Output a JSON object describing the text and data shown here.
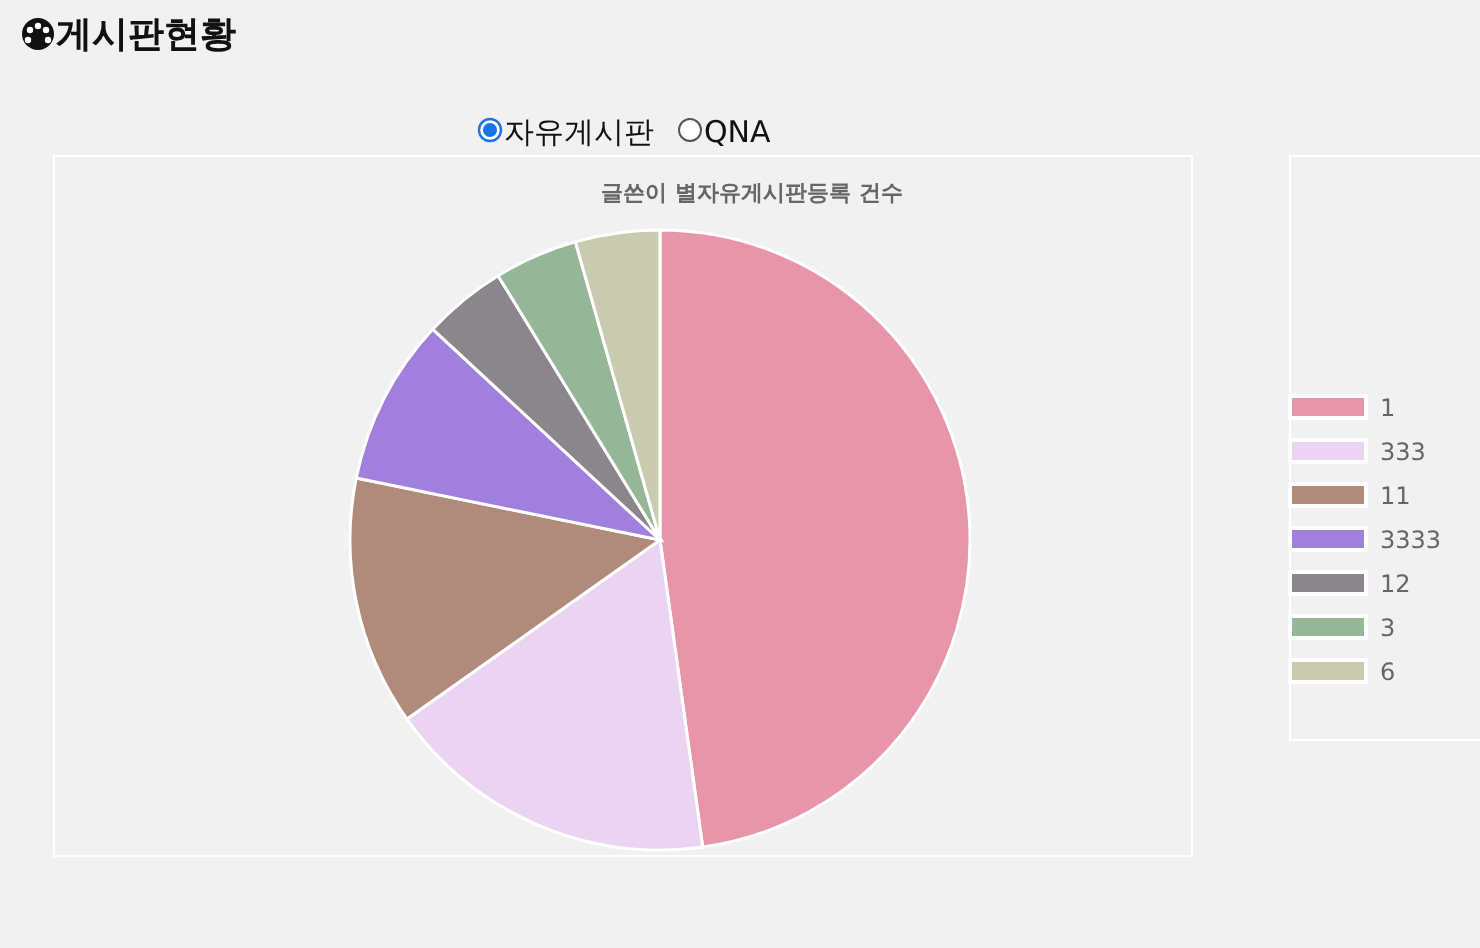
{
  "chart_data": {
    "type": "pie",
    "title": "게시판현황",
    "subtitle": "글쓴이 별자유게시판등록 건수",
    "annotations": [
      "자유게시판",
      "QNA"
    ],
    "categories": [
      "1",
      "333",
      "11",
      "3333",
      "12",
      "3",
      "6"
    ],
    "values": [
      47.8,
      17.4,
      13.0,
      8.7,
      4.35,
      4.35,
      4.4
    ],
    "colors": [
      "#e795a8",
      "#ebd3f2",
      "#b08a7b",
      "#a07fdd",
      "#8a868b",
      "#96b797",
      "#c9cbb0"
    ],
    "legend": "right"
  }
}
